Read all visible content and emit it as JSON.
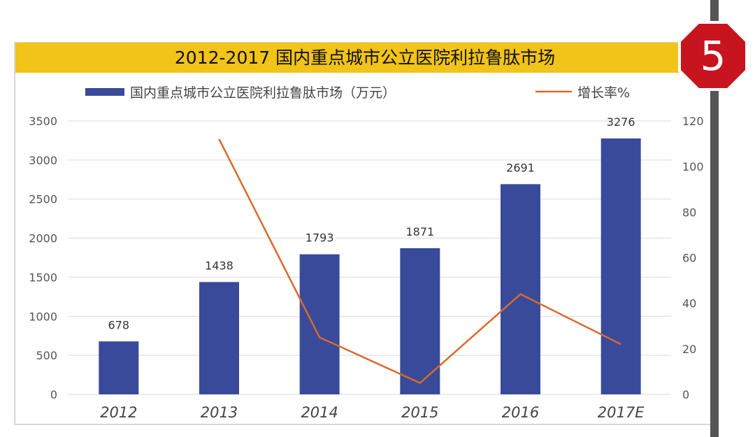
{
  "badge": {
    "number": "5",
    "color": "#c8141e"
  },
  "colors": {
    "title_band": "#f2c318",
    "bar": "#3a4a9a",
    "line": "#d96a2b"
  },
  "chart_data": {
    "type": "bar",
    "title": "2012-2017 国内重点城市公立医院利拉鲁肽市场",
    "categories": [
      "2012",
      "2013",
      "2014",
      "2015",
      "2016",
      "2017E"
    ],
    "series": [
      {
        "name": "国内重点城市公立医院利拉鲁肽市场（万元）",
        "type": "bar",
        "axis": "left",
        "values": [
          678,
          1438,
          1793,
          1871,
          2691,
          3276
        ],
        "labels": [
          "678",
          "1438",
          "1793",
          "1871",
          "2691",
          "3276"
        ]
      },
      {
        "name": "增长率%",
        "type": "line",
        "axis": "right",
        "values": [
          null,
          112,
          25,
          5,
          44,
          22
        ]
      }
    ],
    "left_axis": {
      "ylim": [
        0,
        3500
      ],
      "ticks": [
        "0",
        "500",
        "1000",
        "1500",
        "2000",
        "2500",
        "3000",
        "3500"
      ]
    },
    "right_axis": {
      "ylim": [
        0,
        120
      ],
      "ticks": [
        "0",
        "20",
        "40",
        "60",
        "80",
        "100",
        "120"
      ]
    },
    "grid": true,
    "legend_position": "top"
  }
}
